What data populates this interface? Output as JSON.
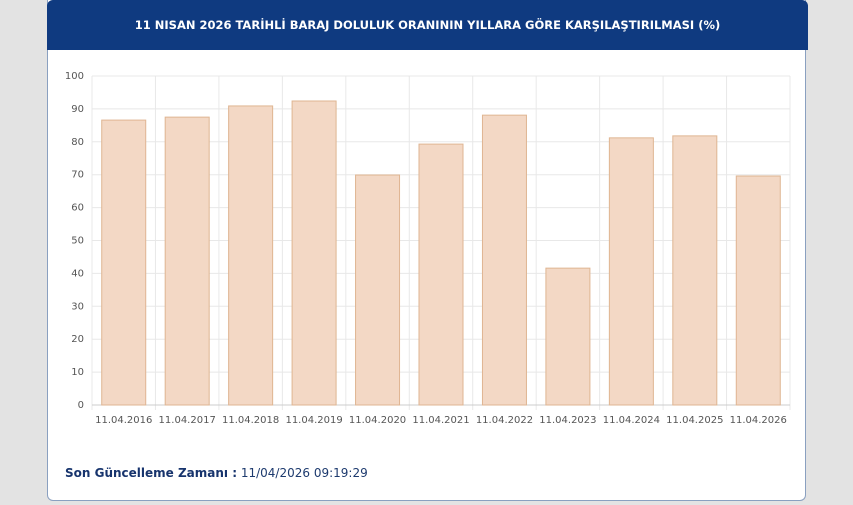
{
  "chart_data": {
    "type": "bar",
    "title": "11 NISAN 2026 TARİHLİ BARAJ DOLULUK ORANININ YILLARA GÖRE KARŞILAŞTIRILMASI (%)",
    "categories": [
      "11.04.2016",
      "11.04.2017",
      "11.04.2018",
      "11.04.2019",
      "11.04.2020",
      "11.04.2021",
      "11.04.2022",
      "11.04.2023",
      "11.04.2024",
      "11.04.2025",
      "11.04.2026"
    ],
    "values": [
      86.6,
      87.5,
      90.9,
      92.4,
      69.9,
      79.3,
      88.1,
      41.6,
      81.2,
      81.8,
      69.6
    ],
    "color": "#f3d8c5",
    "ylim": [
      0,
      100
    ],
    "yticks": [
      0,
      10,
      20,
      30,
      40,
      50,
      60,
      70,
      80,
      90,
      100
    ],
    "grid": true
  },
  "footer": {
    "label": "Son Güncelleme Zamanı :",
    "value": "11/04/2026 09:19:29"
  }
}
